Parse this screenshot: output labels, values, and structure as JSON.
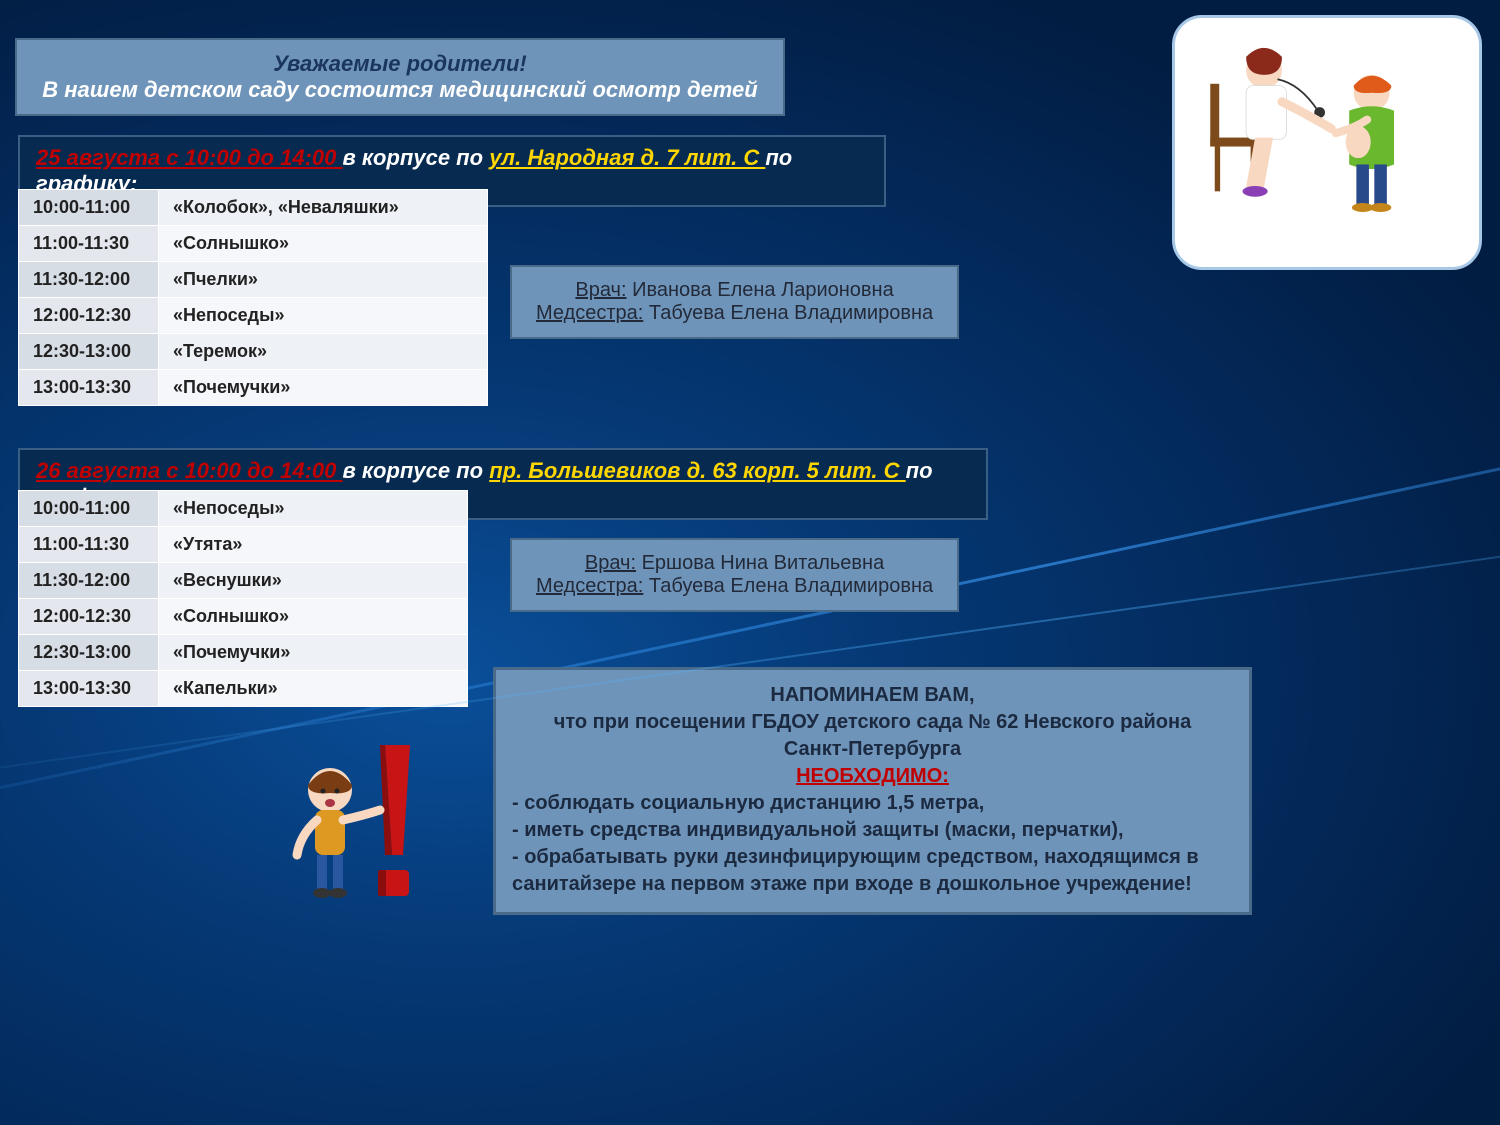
{
  "colors": {
    "panel_bg": "#6f94b9",
    "panel_border": "#4a6a8a",
    "dark_panel_bg": "#072a50",
    "red_text": "#c00000",
    "yellow_text": "#ffd600",
    "table_time_bg": "#d7dde5",
    "table_group_bg": "#eef1f5"
  },
  "header": {
    "line1": "Уважаемые родители!",
    "line2": "В нашем детском саду состоится медицинский осмотр детей"
  },
  "day1": {
    "date_range": "25 августа с 10:00 до 14:00 ",
    "mid_text": "в корпусе по ",
    "address": "ул. Народная д. 7 лит. С ",
    "tail": "по графику:",
    "schedule": [
      {
        "time": "10:00-11:00",
        "group": "«Колобок», «Неваляшки»"
      },
      {
        "time": "11:00-11:30",
        "group": "«Солнышко»"
      },
      {
        "time": "11:30-12:00",
        "group": "«Пчелки»"
      },
      {
        "time": "12:00-12:30",
        "group": "«Непоседы»"
      },
      {
        "time": "12:30-13:00",
        "group": "«Теремок»"
      },
      {
        "time": "13:00-13:30",
        "group": "«Почемучки»"
      }
    ],
    "staff": {
      "doctor_label": "Врач:",
      "doctor_name": " Иванова Елена Ларионовна",
      "nurse_label": "Медсестра:",
      "nurse_name": " Табуева Елена Владимировна"
    }
  },
  "day2": {
    "date_range": "26 августа с 10:00 до 14:00 ",
    "mid_text": "в корпусе по ",
    "address": "пр. Большевиков д. 63 корп. 5 лит. С ",
    "tail": "по графику:",
    "schedule": [
      {
        "time": "10:00-11:00",
        "group": "«Непоседы»"
      },
      {
        "time": "11:00-11:30",
        "group": "«Утята»"
      },
      {
        "time": "11:30-12:00",
        "group": "«Веснушки»"
      },
      {
        "time": "12:00-12:30",
        "group": "«Солнышко»"
      },
      {
        "time": "12:30-13:00",
        "group": "«Почемучки»"
      },
      {
        "time": "13:00-13:30",
        "group": "«Капельки»"
      }
    ],
    "staff": {
      "doctor_label": "Врач:",
      "doctor_name": " Ершова Нина Витальевна",
      "nurse_label": "Медсестра:",
      "nurse_name": " Табуева Елена Владимировна"
    }
  },
  "reminder": {
    "title": "НАПОМИНАЕМ ВАМ,",
    "line1": "что при посещении ГБДОУ детского сада № 62 Невского района",
    "line2": "Санкт-Петербурга",
    "need": "НЕОБХОДИМО:",
    "bullets": [
      "- соблюдать социальную дистанцию 1,5 метра,",
      "- иметь средства индивидуальной защиты (маски, перчатки),",
      "- обрабатывать руки дезинфицирующим средством, находящимся в санитайзере на первом этаже при входе в дошкольное учреждение!"
    ]
  },
  "images": {
    "top_right": "doctor-child-illustration",
    "bottom_left": "child-exclamation-icon"
  }
}
